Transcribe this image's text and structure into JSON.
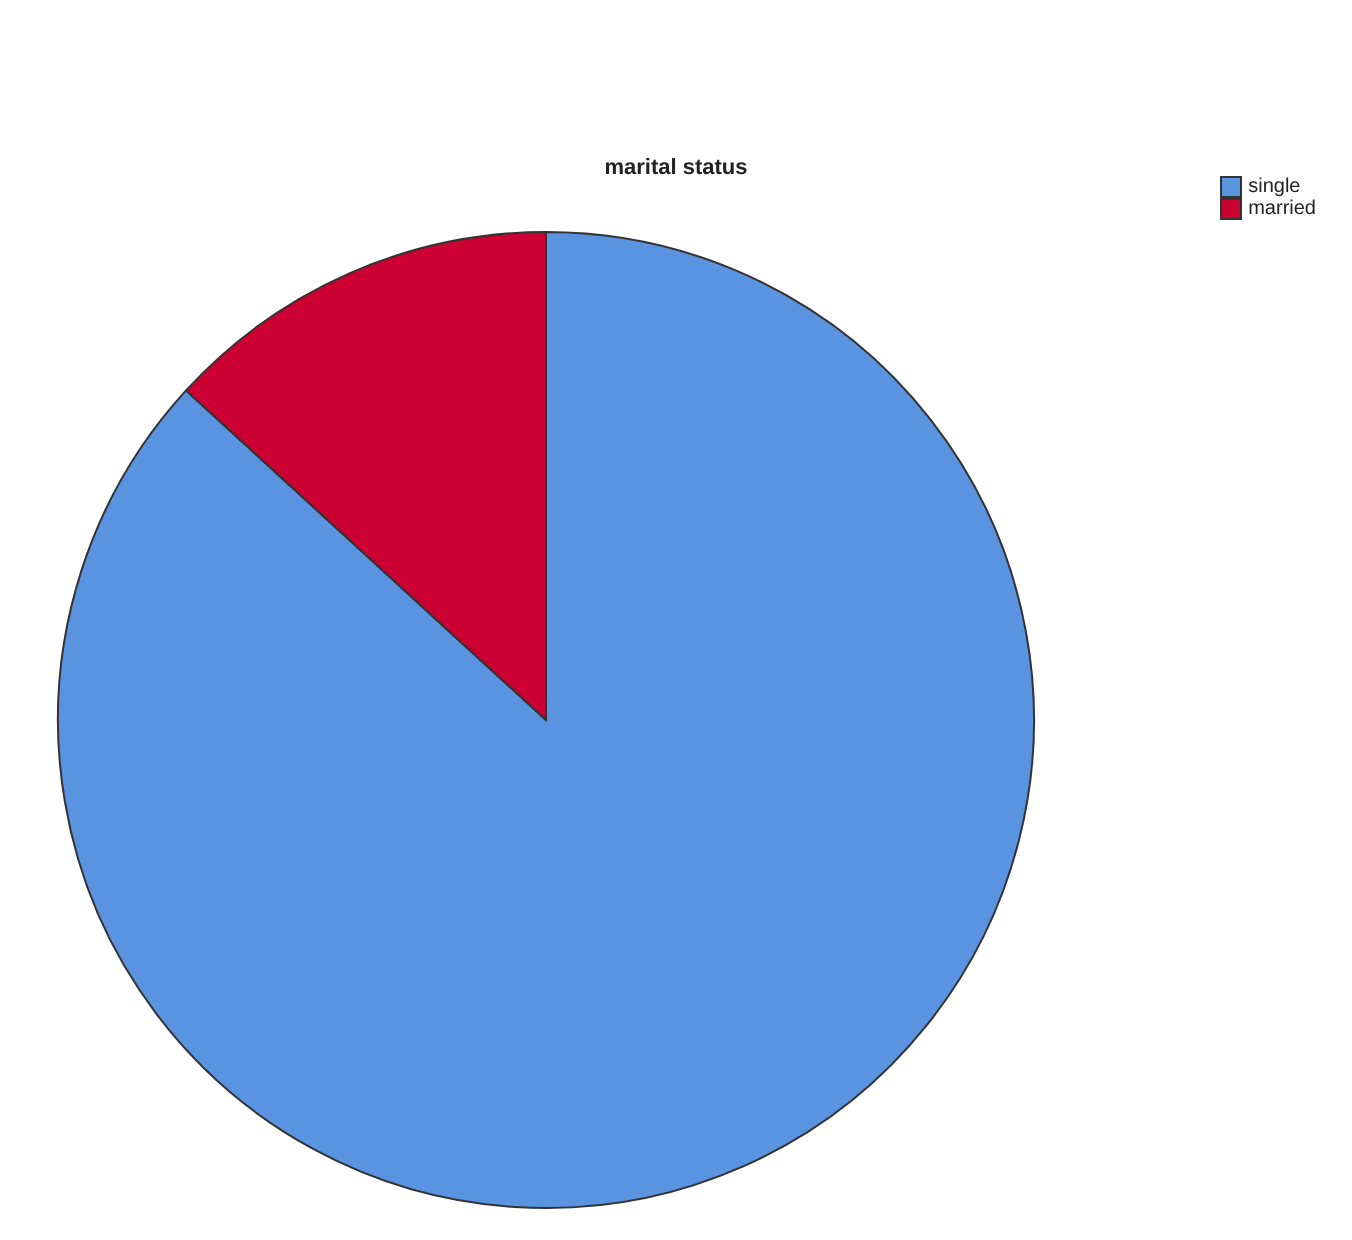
{
  "chart_data": {
    "type": "pie",
    "title": "marital status",
    "categories": [
      "single",
      "married"
    ],
    "values": [
      86.8,
      13.2
    ],
    "colors": [
      "#5a93e0",
      "#cc0033"
    ],
    "legend": "top right"
  }
}
